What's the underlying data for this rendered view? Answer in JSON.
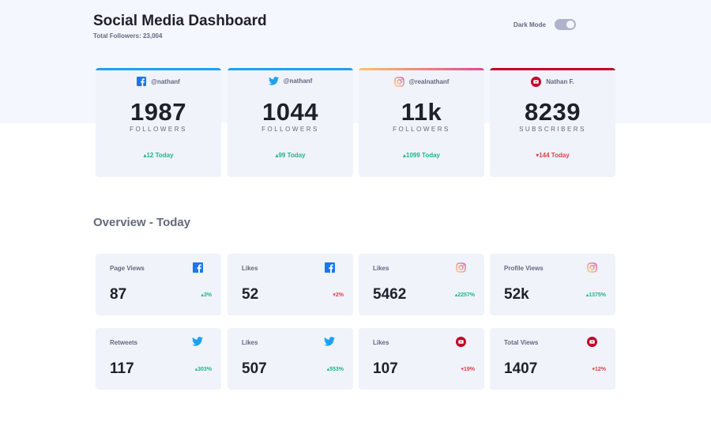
{
  "header": {
    "title": "Social Media Dashboard",
    "total_followers": "Total Followers: 23,004",
    "dark_mode_label": "Dark Mode"
  },
  "colors": {
    "facebook": "#1877f2",
    "twitter": "#1da1f2",
    "instagram_start": "#fdc468",
    "instagram_end": "#df4996",
    "youtube": "#c4032a",
    "up": "#1eb589",
    "down": "#dc414c"
  },
  "cards": [
    {
      "platform": "facebook-icon",
      "handle": "@nathanf",
      "count": "1987",
      "unit": "FOLLOWERS",
      "delta": "12 Today",
      "trend": "up"
    },
    {
      "platform": "twitter-icon",
      "handle": "@nathanf",
      "count": "1044",
      "unit": "FOLLOWERS",
      "delta": "99 Today",
      "trend": "up"
    },
    {
      "platform": "instagram-icon",
      "handle": "@realnathanf",
      "count": "11k",
      "unit": "FOLLOWERS",
      "delta": "1099 Today",
      "trend": "up"
    },
    {
      "platform": "youtube-icon",
      "handle": "Nathan F.",
      "count": "8239",
      "unit": "SUBSCRIBERS",
      "delta": "144 Today",
      "trend": "down"
    }
  ],
  "overview": {
    "title": "Overview - Today",
    "items": [
      {
        "label": "Page Views",
        "platform": "facebook-icon",
        "value": "87",
        "pct": "3%",
        "trend": "up"
      },
      {
        "label": "Likes",
        "platform": "facebook-icon",
        "value": "52",
        "pct": "2%",
        "trend": "down"
      },
      {
        "label": "Likes",
        "platform": "instagram-icon",
        "value": "5462",
        "pct": "2257%",
        "trend": "up"
      },
      {
        "label": "Profile Views",
        "platform": "instagram-icon",
        "value": "52k",
        "pct": "1375%",
        "trend": "up"
      },
      {
        "label": "Retweets",
        "platform": "twitter-icon",
        "value": "117",
        "pct": "303%",
        "trend": "up"
      },
      {
        "label": "Likes",
        "platform": "twitter-icon",
        "value": "507",
        "pct": "553%",
        "trend": "up"
      },
      {
        "label": "Likes",
        "platform": "youtube-icon",
        "value": "107",
        "pct": "19%",
        "trend": "down"
      },
      {
        "label": "Total Views",
        "platform": "youtube-icon",
        "value": "1407",
        "pct": "12%",
        "trend": "down"
      }
    ]
  }
}
